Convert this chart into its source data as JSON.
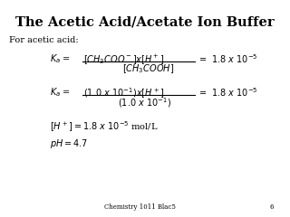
{
  "title": "The Acetic Acid/Acetate Ion Buffer",
  "bg_color": "#ffffff",
  "title_color": "#000000",
  "text_color": "#000000",
  "footer_text": "Chemistry 1011 Blac5",
  "footer_page": "6",
  "title_fontsize": 10.5,
  "body_fontsize": 7.0,
  "footer_fontsize": 5.0
}
